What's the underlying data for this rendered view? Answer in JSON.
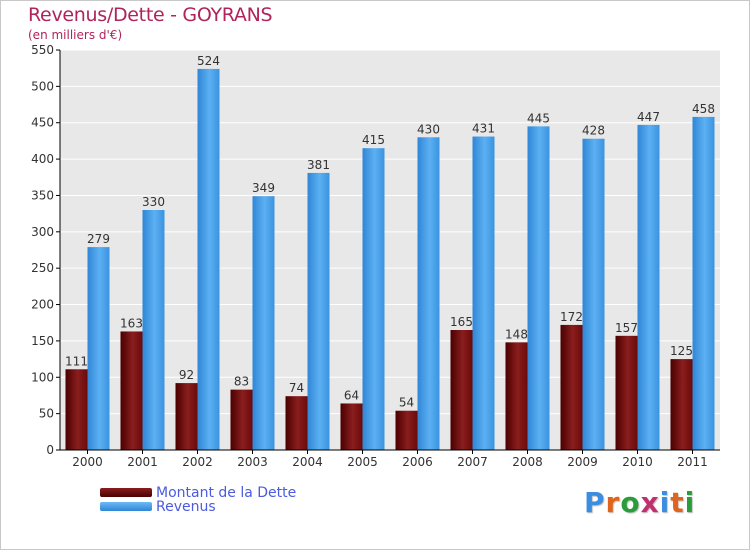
{
  "header": {
    "title": "Revenus/Dette - GOYRANS",
    "subtitle": "(en milliers d'€)"
  },
  "legend": {
    "items": [
      {
        "label": "Montant de la Dette",
        "color": "#6b0d0d"
      },
      {
        "label": "Revenus",
        "color": "#3d9ae8"
      }
    ]
  },
  "logo": {
    "text": "Proxiti",
    "colors": [
      "#3b8de0",
      "#e0641b",
      "#2a9c3a",
      "#c03070",
      "#3b8de0",
      "#e0641b",
      "#2a9c3a"
    ]
  },
  "chart_data": {
    "type": "bar",
    "title": "Revenus/Dette - GOYRANS",
    "subtitle": "(en milliers d'€)",
    "xlabel": "",
    "ylabel": "",
    "categories": [
      "2000",
      "2001",
      "2002",
      "2003",
      "2004",
      "2005",
      "2006",
      "2007",
      "2008",
      "2009",
      "2010",
      "2011"
    ],
    "series": [
      {
        "name": "Montant de la Dette",
        "color": "#6b0d0d",
        "values": [
          111,
          163,
          92,
          83,
          74,
          64,
          54,
          165,
          148,
          172,
          157,
          125
        ]
      },
      {
        "name": "Revenus",
        "color": "#3d9ae8",
        "values": [
          279,
          330,
          524,
          349,
          381,
          415,
          430,
          431,
          445,
          428,
          447,
          458
        ]
      }
    ],
    "ylim": [
      0,
      550
    ],
    "yticks": [
      0,
      50,
      100,
      150,
      200,
      250,
      300,
      350,
      400,
      450,
      500,
      550
    ],
    "grid": true,
    "legend_position": "bottom-left"
  }
}
